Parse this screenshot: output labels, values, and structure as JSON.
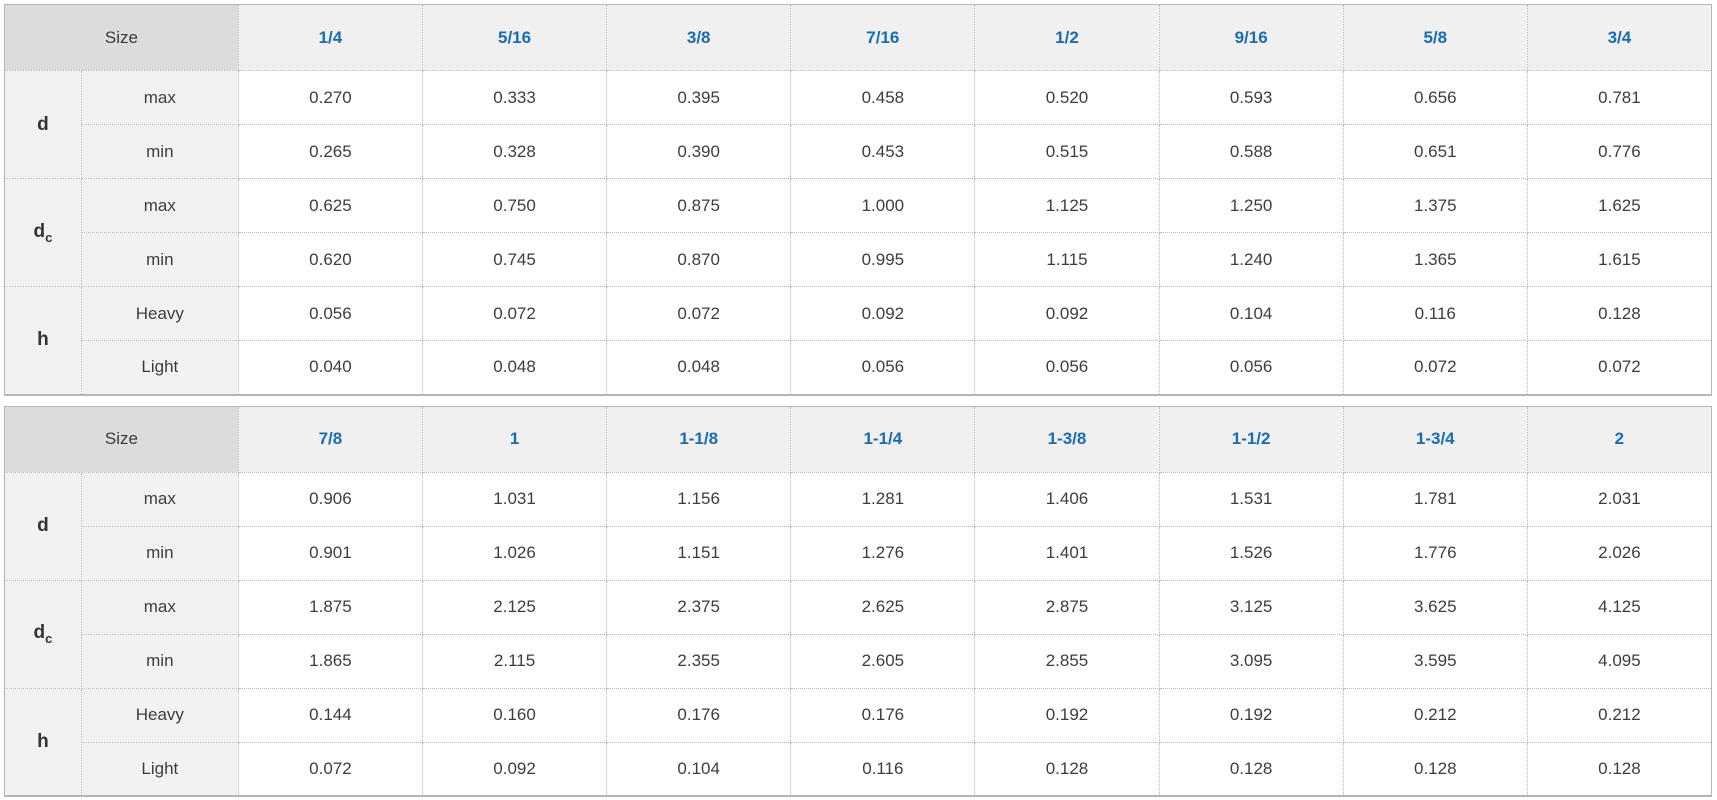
{
  "colors": {
    "accent_blue": "#1a6cb0",
    "corner_cell_bg": "#dcdcdc",
    "column_header_bg": "#f0f0f0",
    "row_label_bg": "#f2f2f2",
    "body_text": "#3d3d3d",
    "border_gray": "#b9b9b9"
  },
  "chart_data": [
    {
      "type": "table",
      "corner_label": "Size",
      "columns": [
        "1/4",
        "5/16",
        "3/8",
        "7/16",
        "1/2",
        "9/16",
        "5/8",
        "3/4"
      ],
      "row_groups": [
        {
          "symbol": "d",
          "subscript": "",
          "rows": [
            {
              "label": "max",
              "values": [
                "0.270",
                "0.333",
                "0.395",
                "0.458",
                "0.520",
                "0.593",
                "0.656",
                "0.781"
              ]
            },
            {
              "label": "min",
              "values": [
                "0.265",
                "0.328",
                "0.390",
                "0.453",
                "0.515",
                "0.588",
                "0.651",
                "0.776"
              ]
            }
          ]
        },
        {
          "symbol": "d",
          "subscript": "c",
          "rows": [
            {
              "label": "max",
              "values": [
                "0.625",
                "0.750",
                "0.875",
                "1.000",
                "1.125",
                "1.250",
                "1.375",
                "1.625"
              ]
            },
            {
              "label": "min",
              "values": [
                "0.620",
                "0.745",
                "0.870",
                "0.995",
                "1.115",
                "1.240",
                "1.365",
                "1.615"
              ]
            }
          ]
        },
        {
          "symbol": "h",
          "subscript": "",
          "rows": [
            {
              "label": "Heavy",
              "values": [
                "0.056",
                "0.072",
                "0.072",
                "0.092",
                "0.092",
                "0.104",
                "0.116",
                "0.128"
              ]
            },
            {
              "label": "Light",
              "values": [
                "0.040",
                "0.048",
                "0.048",
                "0.056",
                "0.056",
                "0.056",
                "0.072",
                "0.072"
              ]
            }
          ]
        }
      ]
    },
    {
      "type": "table",
      "corner_label": "Size",
      "columns": [
        "7/8",
        "1",
        "1-1/8",
        "1-1/4",
        "1-3/8",
        "1-1/2",
        "1-3/4",
        "2"
      ],
      "row_groups": [
        {
          "symbol": "d",
          "subscript": "",
          "rows": [
            {
              "label": "max",
              "values": [
                "0.906",
                "1.031",
                "1.156",
                "1.281",
                "1.406",
                "1.531",
                "1.781",
                "2.031"
              ]
            },
            {
              "label": "min",
              "values": [
                "0.901",
                "1.026",
                "1.151",
                "1.276",
                "1.401",
                "1.526",
                "1.776",
                "2.026"
              ]
            }
          ]
        },
        {
          "symbol": "d",
          "subscript": "c",
          "rows": [
            {
              "label": "max",
              "values": [
                "1.875",
                "2.125",
                "2.375",
                "2.625",
                "2.875",
                "3.125",
                "3.625",
                "4.125"
              ]
            },
            {
              "label": "min",
              "values": [
                "1.865",
                "2.115",
                "2.355",
                "2.605",
                "2.855",
                "3.095",
                "3.595",
                "4.095"
              ]
            }
          ]
        },
        {
          "symbol": "h",
          "subscript": "",
          "rows": [
            {
              "label": "Heavy",
              "values": [
                "0.144",
                "0.160",
                "0.176",
                "0.176",
                "0.192",
                "0.192",
                "0.212",
                "0.212"
              ]
            },
            {
              "label": "Light",
              "values": [
                "0.072",
                "0.092",
                "0.104",
                "0.116",
                "0.128",
                "0.128",
                "0.128",
                "0.128"
              ]
            }
          ]
        }
      ]
    }
  ]
}
